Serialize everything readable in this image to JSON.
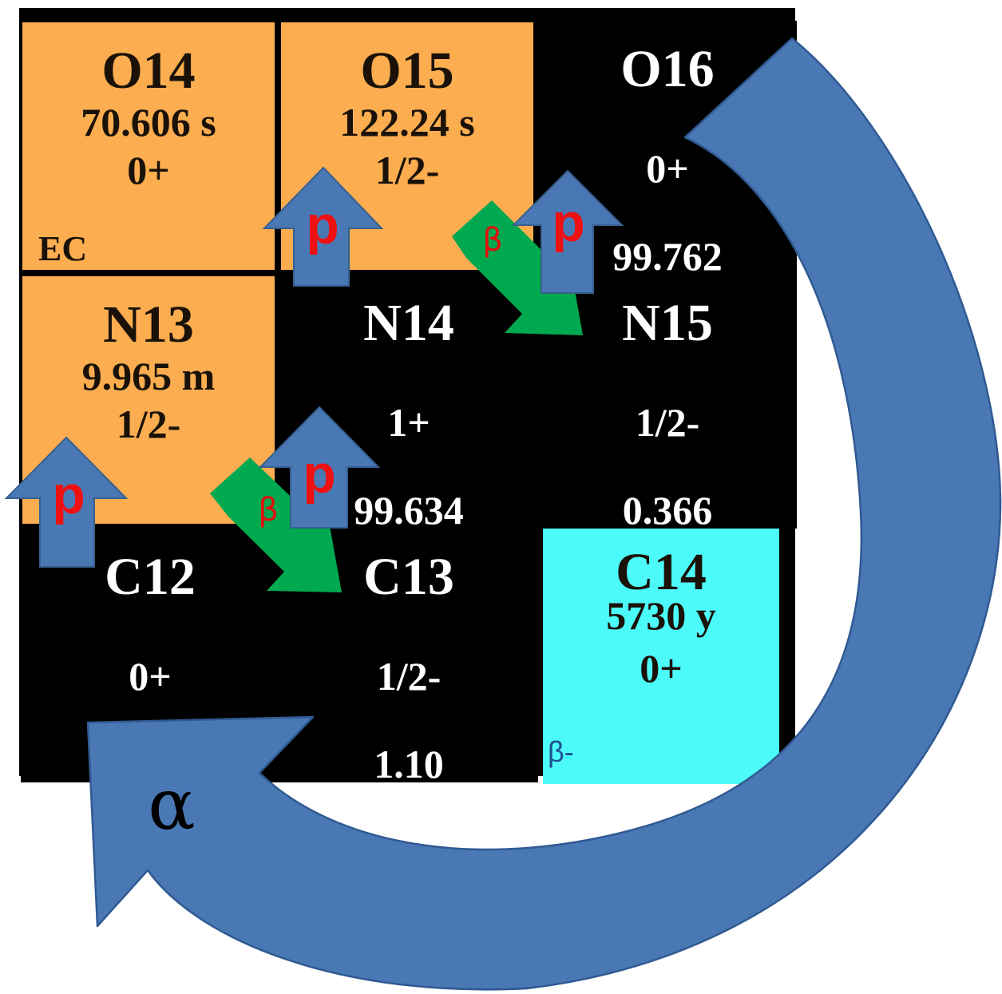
{
  "nuclides": [
    {
      "id": "O14",
      "name": "O14",
      "half_life": "70.606 s",
      "spin": "0+",
      "abundance": "",
      "decay_mode": "EC",
      "kind": "unstable",
      "row": 0,
      "col": 0
    },
    {
      "id": "O15",
      "name": "O15",
      "half_life": "122.24 s",
      "spin": "1/2-",
      "abundance": "",
      "decay_mode": "",
      "kind": "unstable",
      "row": 0,
      "col": 1
    },
    {
      "id": "O16",
      "name": "O16",
      "half_life": "",
      "spin": "0+",
      "abundance": "99.762",
      "decay_mode": "",
      "kind": "stable",
      "row": 0,
      "col": 2
    },
    {
      "id": "N13",
      "name": "N13",
      "half_life": "9.965 m",
      "spin": "1/2-",
      "abundance": "",
      "decay_mode": "",
      "kind": "unstable",
      "row": 1,
      "col": 0
    },
    {
      "id": "N14",
      "name": "N14",
      "half_life": "",
      "spin": "1+",
      "abundance": "99.634",
      "decay_mode": "",
      "kind": "stable",
      "row": 1,
      "col": 1
    },
    {
      "id": "N15",
      "name": "N15",
      "half_life": "",
      "spin": "1/2-",
      "abundance": "0.366",
      "decay_mode": "",
      "kind": "stable",
      "row": 1,
      "col": 2
    },
    {
      "id": "C12",
      "name": "C12",
      "half_life": "",
      "spin": "0+",
      "abundance": "",
      "decay_mode": "",
      "kind": "stable",
      "row": 2,
      "col": 0
    },
    {
      "id": "C13",
      "name": "C13",
      "half_life": "",
      "spin": "1/2-",
      "abundance": "1.10",
      "decay_mode": "",
      "kind": "stable",
      "row": 2,
      "col": 1
    },
    {
      "id": "C14",
      "name": "C14",
      "half_life": "5730 y",
      "spin": "0+",
      "abundance": "",
      "decay_mode": "β-",
      "kind": "cyan",
      "row": 2,
      "col": 2
    }
  ],
  "reactions": {
    "proton_label": "p",
    "beta_label": "β",
    "alpha_label": "α"
  },
  "colors": {
    "unstable": "#fbad50",
    "stable": "#000000",
    "long_lived": "#4dfafa",
    "proton_arrow": "#4a78b4",
    "beta_arrow": "#00a84f",
    "alpha_arrow": "#4a78b4",
    "reaction_label": "#ee1111"
  }
}
